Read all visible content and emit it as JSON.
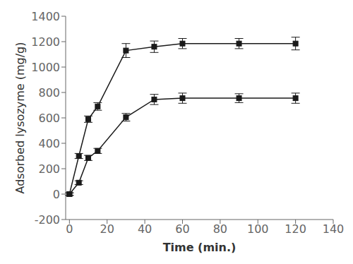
{
  "chart_data": {
    "type": "line",
    "xlabel": "Time (min.)",
    "ylabel": "Adsorbed lysozyme (mg/g)",
    "x": [
      0,
      5,
      10,
      15,
      30,
      45,
      60,
      90,
      120
    ],
    "series": [
      {
        "color": "#1a1a1a",
        "marker": "square",
        "line_style": "solid",
        "values": [
          0,
          300,
          590,
          690,
          1130,
          1160,
          1185,
          1185,
          1185
        ],
        "yerr": [
          10,
          20,
          25,
          30,
          55,
          45,
          40,
          40,
          50
        ]
      },
      {
        "color": "#1a1a1a",
        "marker": "square",
        "line_style": "solid",
        "values": [
          0,
          90,
          285,
          340,
          605,
          745,
          755,
          755,
          755
        ],
        "yerr": [
          10,
          15,
          20,
          20,
          30,
          40,
          40,
          35,
          40
        ]
      }
    ],
    "xlim": [
      -2,
      140
    ],
    "ylim": [
      -200,
      1400
    ],
    "xticks": [
      0,
      20,
      40,
      60,
      80,
      100,
      120,
      140
    ],
    "yticks": [
      -200,
      0,
      200,
      400,
      600,
      800,
      1000,
      1200,
      1400
    ],
    "grid": false
  }
}
